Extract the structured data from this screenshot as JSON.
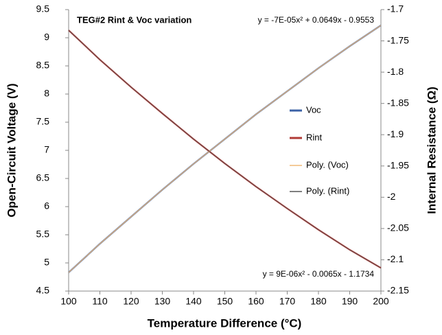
{
  "chart_data": {
    "type": "line",
    "title": "TEG#2 Rint & Voc variation",
    "x_label": "Temperature Difference (°C)",
    "y_label": "Open-Circuit Voltage (V)",
    "y2_label": "Internal Resistance (Ω)",
    "annotations": [
      "y = -7E-05x² + 0.0649x - 0.9553",
      "y = 9E-06x² - 0.0065x - 1.1734"
    ],
    "x": [
      100,
      110,
      120,
      130,
      140,
      150,
      160,
      170,
      180,
      190,
      200
    ],
    "series": [
      {
        "name": "Voc",
        "color": "#3b62a6",
        "values": [
          4.83,
          5.34,
          5.82,
          6.3,
          6.76,
          7.2,
          7.64,
          8.05,
          8.46,
          8.85,
          9.22
        ]
      },
      {
        "name": "Rint",
        "color": "#b03a36",
        "axis": "y2",
        "values": [
          -1.733,
          -1.78,
          -1.824,
          -1.866,
          -1.907,
          -1.946,
          -1.983,
          -2.018,
          -2.052,
          -2.084,
          -2.113
        ]
      },
      {
        "name": "Poly. (Voc)",
        "color": "#f0b877",
        "values": [
          4.83,
          5.34,
          5.82,
          6.3,
          6.76,
          7.2,
          7.64,
          8.05,
          8.46,
          8.85,
          9.22
        ]
      },
      {
        "name": "Poly. (Rint)",
        "color": "#555555",
        "axis": "y2",
        "values": [
          -1.733,
          -1.78,
          -1.824,
          -1.866,
          -1.907,
          -1.946,
          -1.983,
          -2.018,
          -2.052,
          -2.084,
          -2.113
        ]
      }
    ],
    "xlim": [
      100,
      200
    ],
    "xticks": [
      100,
      110,
      120,
      130,
      140,
      150,
      160,
      170,
      180,
      190,
      200
    ],
    "ylim": [
      4.5,
      9.5
    ],
    "yticks": [
      4.5,
      5,
      5.5,
      6,
      6.5,
      7,
      7.5,
      8,
      8.5,
      9,
      9.5
    ],
    "y2lim": [
      -2.15,
      -1.7
    ],
    "y2ticks": [
      -2.15,
      -2.1,
      -2.05,
      -2,
      -1.95,
      -1.9,
      -1.85,
      -1.8,
      -1.75,
      -1.7
    ],
    "legend": "right",
    "grid": false
  }
}
